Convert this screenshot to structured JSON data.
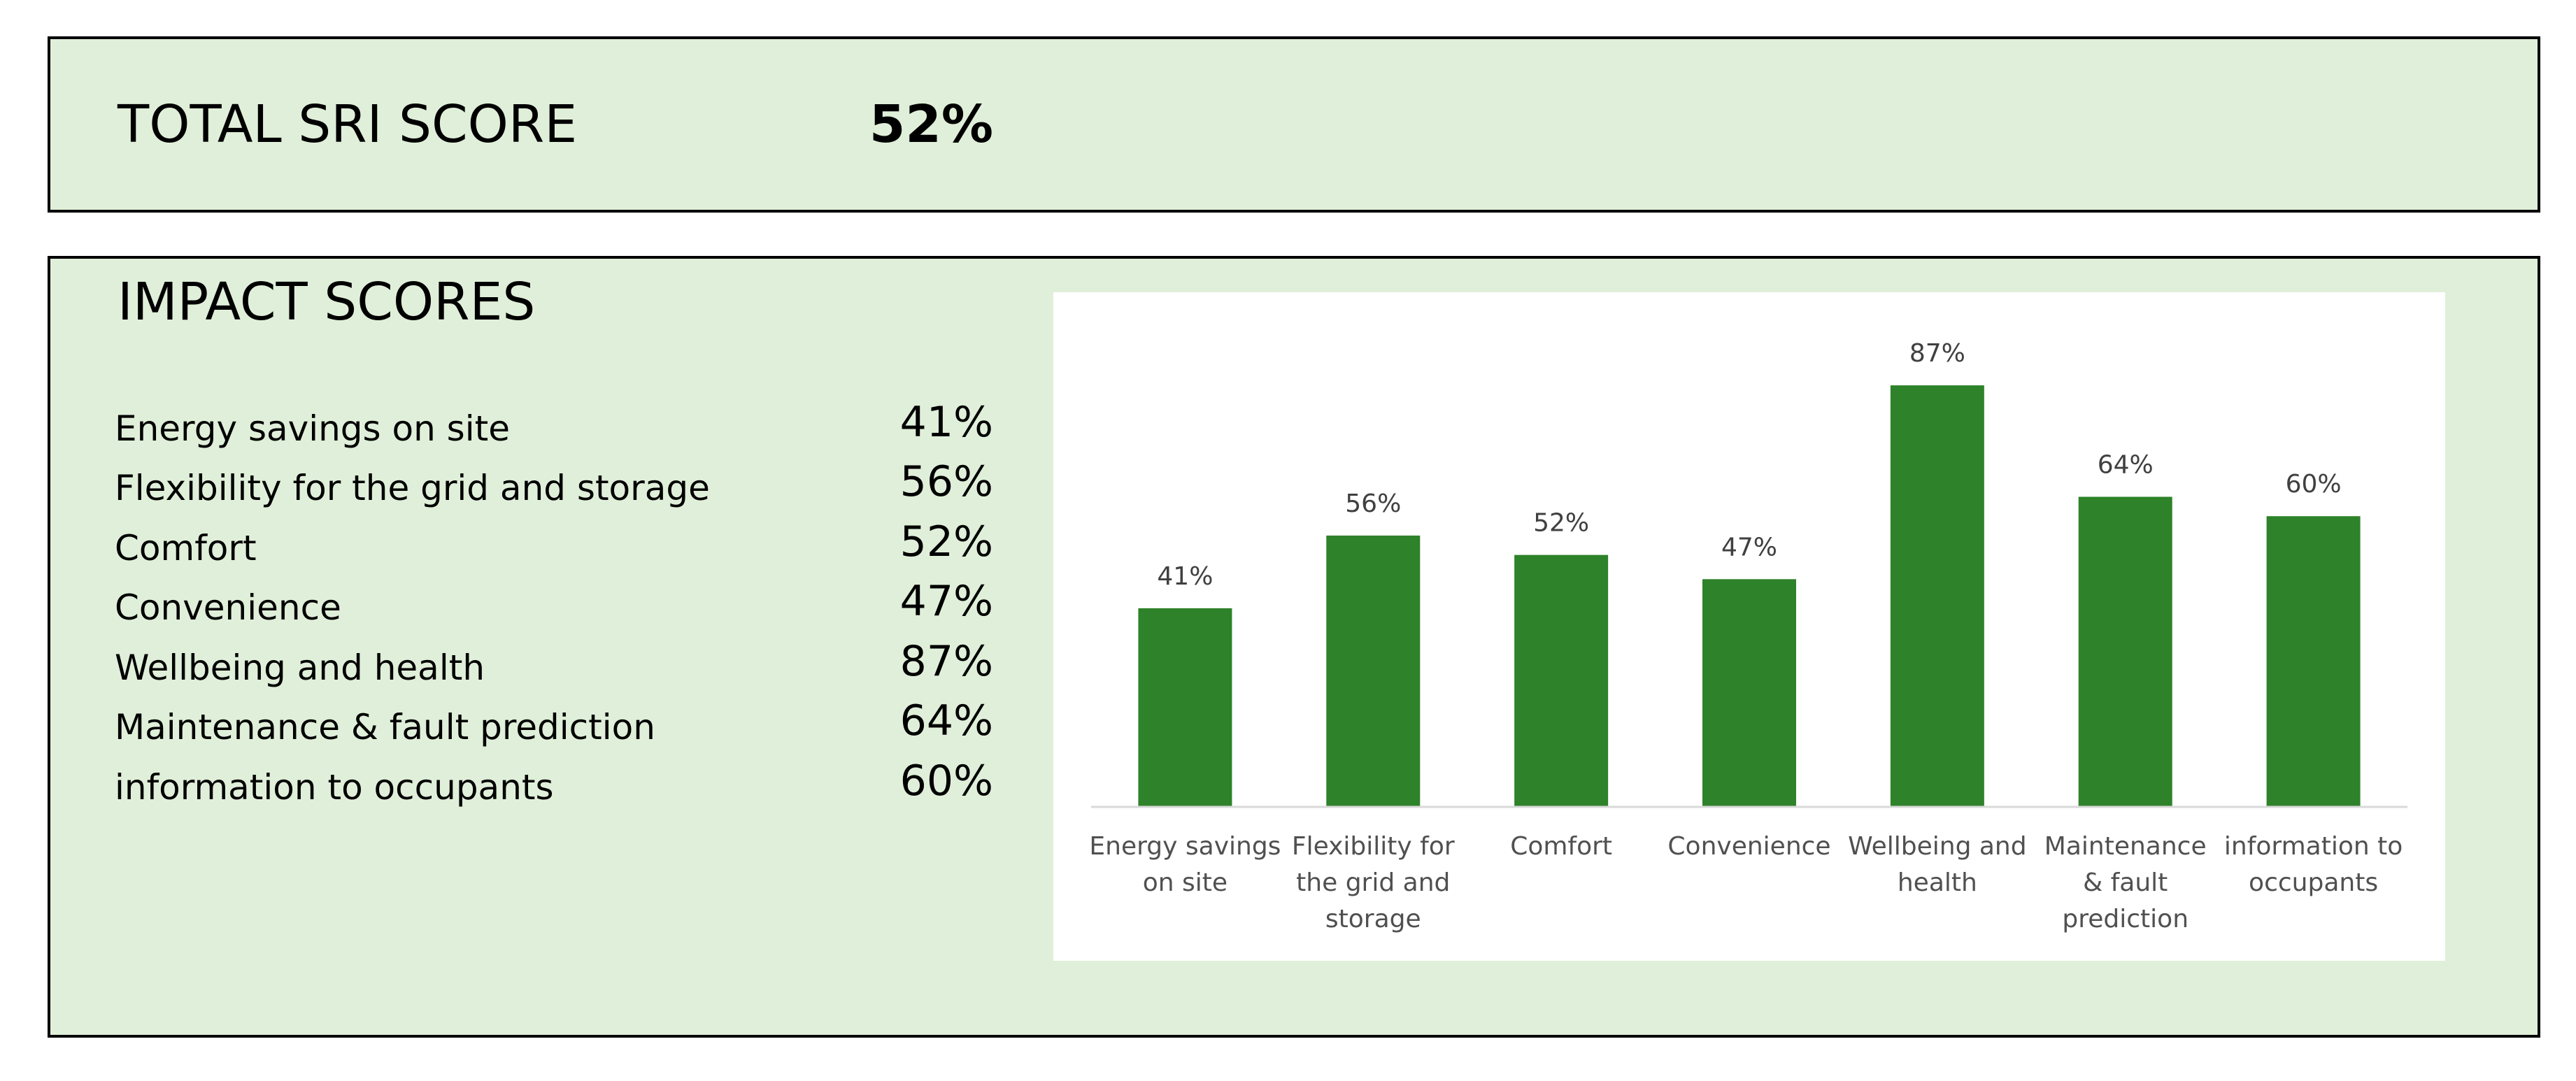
{
  "total": {
    "label": "TOTAL SRI SCORE",
    "value": "52%"
  },
  "impact": {
    "title": "IMPACT SCORES",
    "items": [
      {
        "label": "Energy savings on site",
        "value": "41%"
      },
      {
        "label": "Flexibility for the grid and storage",
        "value": "56%"
      },
      {
        "label": "Comfort",
        "value": "52%"
      },
      {
        "label": "Convenience",
        "value": "47%"
      },
      {
        "label": "Wellbeing and health",
        "value": "87%"
      },
      {
        "label": "Maintenance & fault prediction",
        "value": "64%"
      },
      {
        "label": "information to occupants",
        "value": "60%"
      }
    ]
  },
  "colors": {
    "panel_background": "#e0efd9",
    "bar": "#2e8229"
  },
  "chart_data": {
    "type": "bar",
    "title": "",
    "xlabel": "",
    "ylabel": "",
    "ylim": [
      0,
      100
    ],
    "grid": false,
    "legend": "none",
    "categories": [
      [
        "Energy savings",
        "on site"
      ],
      [
        "Flexibility for",
        "the grid and",
        "storage"
      ],
      [
        "Comfort"
      ],
      [
        "Convenience"
      ],
      [
        "Wellbeing and",
        "health"
      ],
      [
        "Maintenance",
        "& fault",
        "prediction"
      ],
      [
        "information to",
        "occupants"
      ]
    ],
    "values": [
      41,
      56,
      52,
      47,
      87,
      64,
      60
    ],
    "data_labels": [
      "41%",
      "56%",
      "52%",
      "47%",
      "87%",
      "64%",
      "60%"
    ]
  }
}
